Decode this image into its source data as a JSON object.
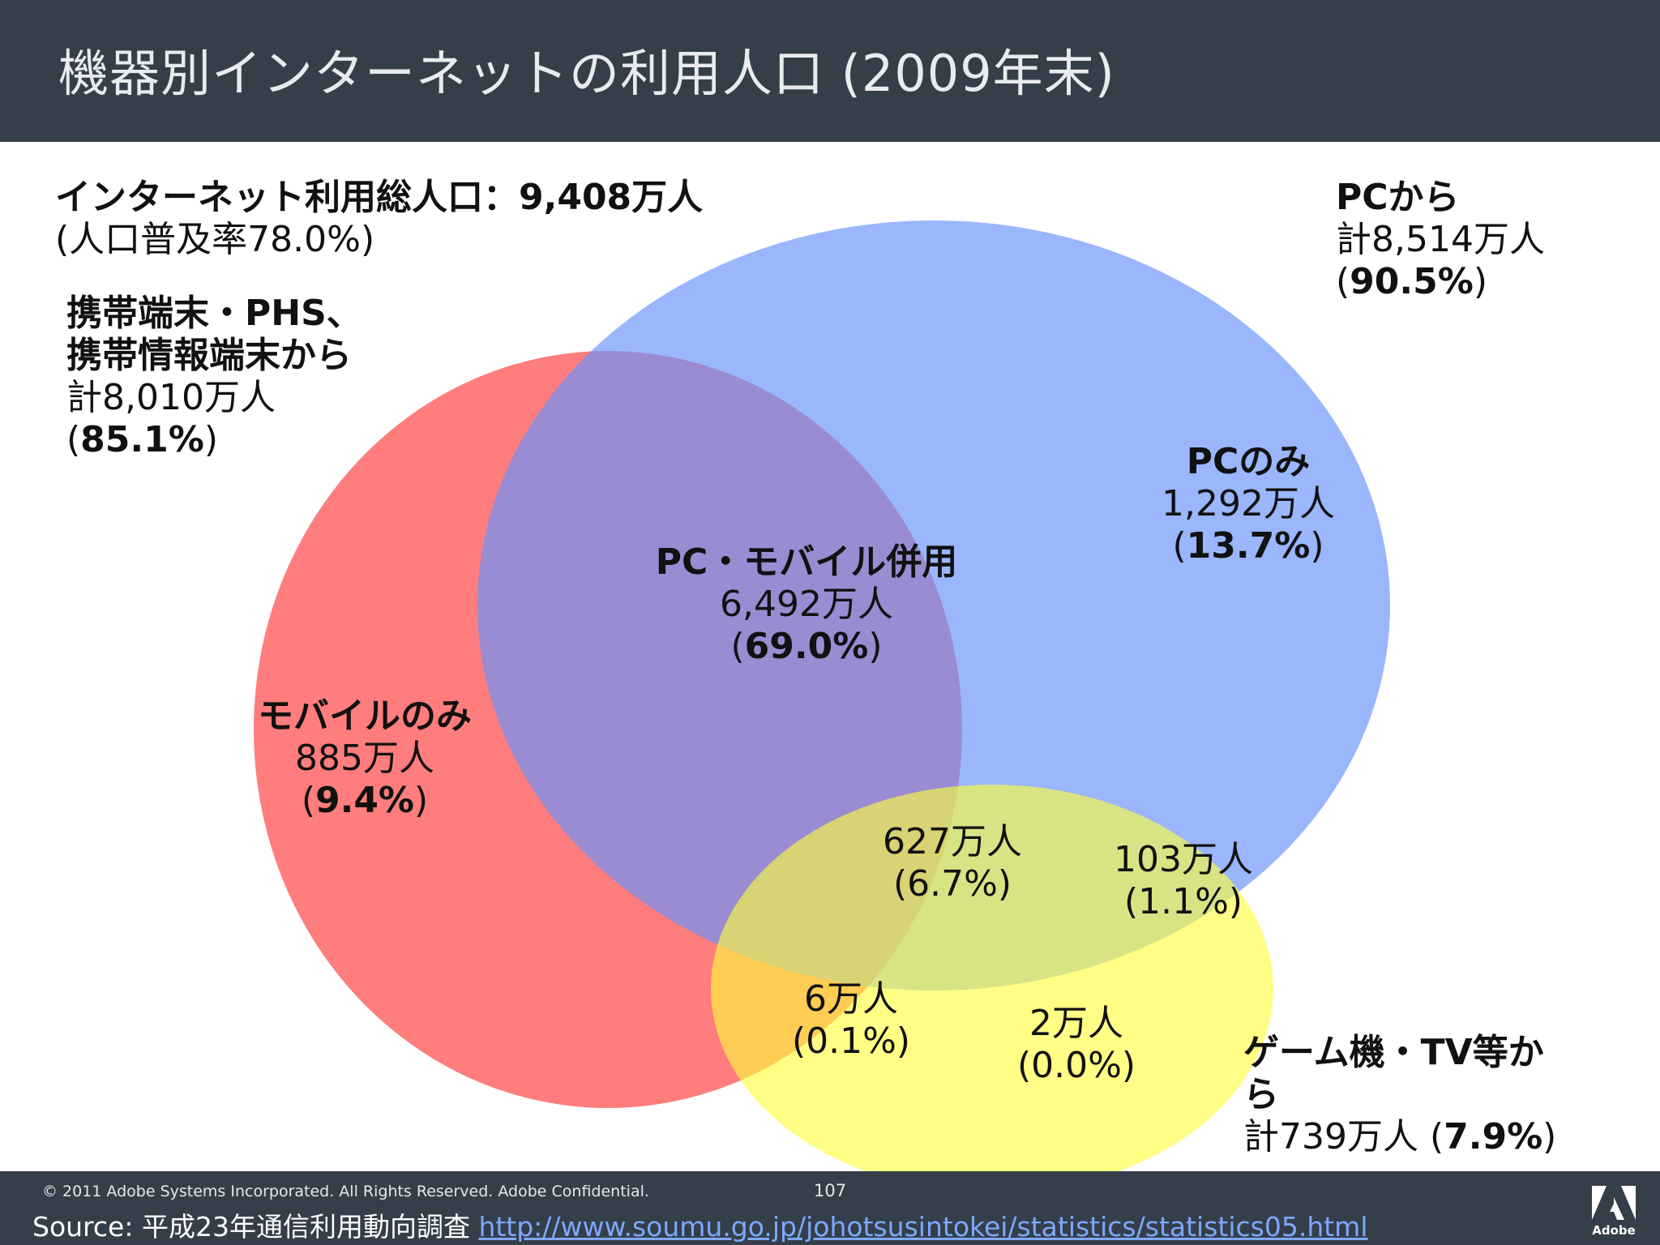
{
  "title": "機器別インターネットの利用人口 (2009年末)",
  "total": {
    "heading": "インターネット利用総人口：9,408万人",
    "rate": "(人口普及率78.0%)"
  },
  "mobile_set": {
    "line1": "携帯端末・PHS、",
    "line2": "携帯情報端末から",
    "count": "計8,010万人",
    "pct_open": "(",
    "pct": "85.1%",
    "pct_close": ")"
  },
  "pc_set": {
    "name": "PCから",
    "count": "計8,514万人",
    "pct_open": "(",
    "pct": "90.5%",
    "pct_close": ")"
  },
  "game_set": {
    "line1": "ゲーム機・TV等か",
    "line2": "ら",
    "count": "計739万人 (",
    "pct": "7.9%",
    "pct_close": ")"
  },
  "regions": {
    "pc_only": {
      "name": "PCのみ",
      "count": "1,292万人",
      "pct_open": "(",
      "pct": "13.7%",
      "pct_close": ")"
    },
    "pc_mobile": {
      "name": "PC・モバイル併用",
      "count": "6,492万人",
      "pct_open": "(",
      "pct": "69.0%",
      "pct_close": ")"
    },
    "mobile_only": {
      "name": "モバイルのみ",
      "count": "885万人",
      "pct_open": "(",
      "pct": "9.4%",
      "pct_close": ")"
    },
    "all_three": {
      "count": "627万人",
      "pct": "(6.7%)"
    },
    "pc_game": {
      "count": "103万人",
      "pct": "(1.1%)"
    },
    "mobile_game": {
      "count": "6万人",
      "pct": "(0.1%)"
    },
    "game_only": {
      "count": "2万人",
      "pct": "(0.0%)"
    }
  },
  "colors": {
    "title_bar": "#343f4a",
    "mobile": "#ff6b6b",
    "pc": "#7b9ffa",
    "game": "#ffff66",
    "link": "#7ea8ff"
  },
  "footer": {
    "copyright": "© 2011 Adobe Systems Incorporated.  All Rights Reserved.  Adobe Confidential.",
    "page": "107",
    "source_prefix": "Source: 平成23年通信利用動向調査 ",
    "source_url": "http://www.soumu.go.jp/johotsusintokei/statistics/statistics05.html",
    "brand": "Adobe"
  }
}
